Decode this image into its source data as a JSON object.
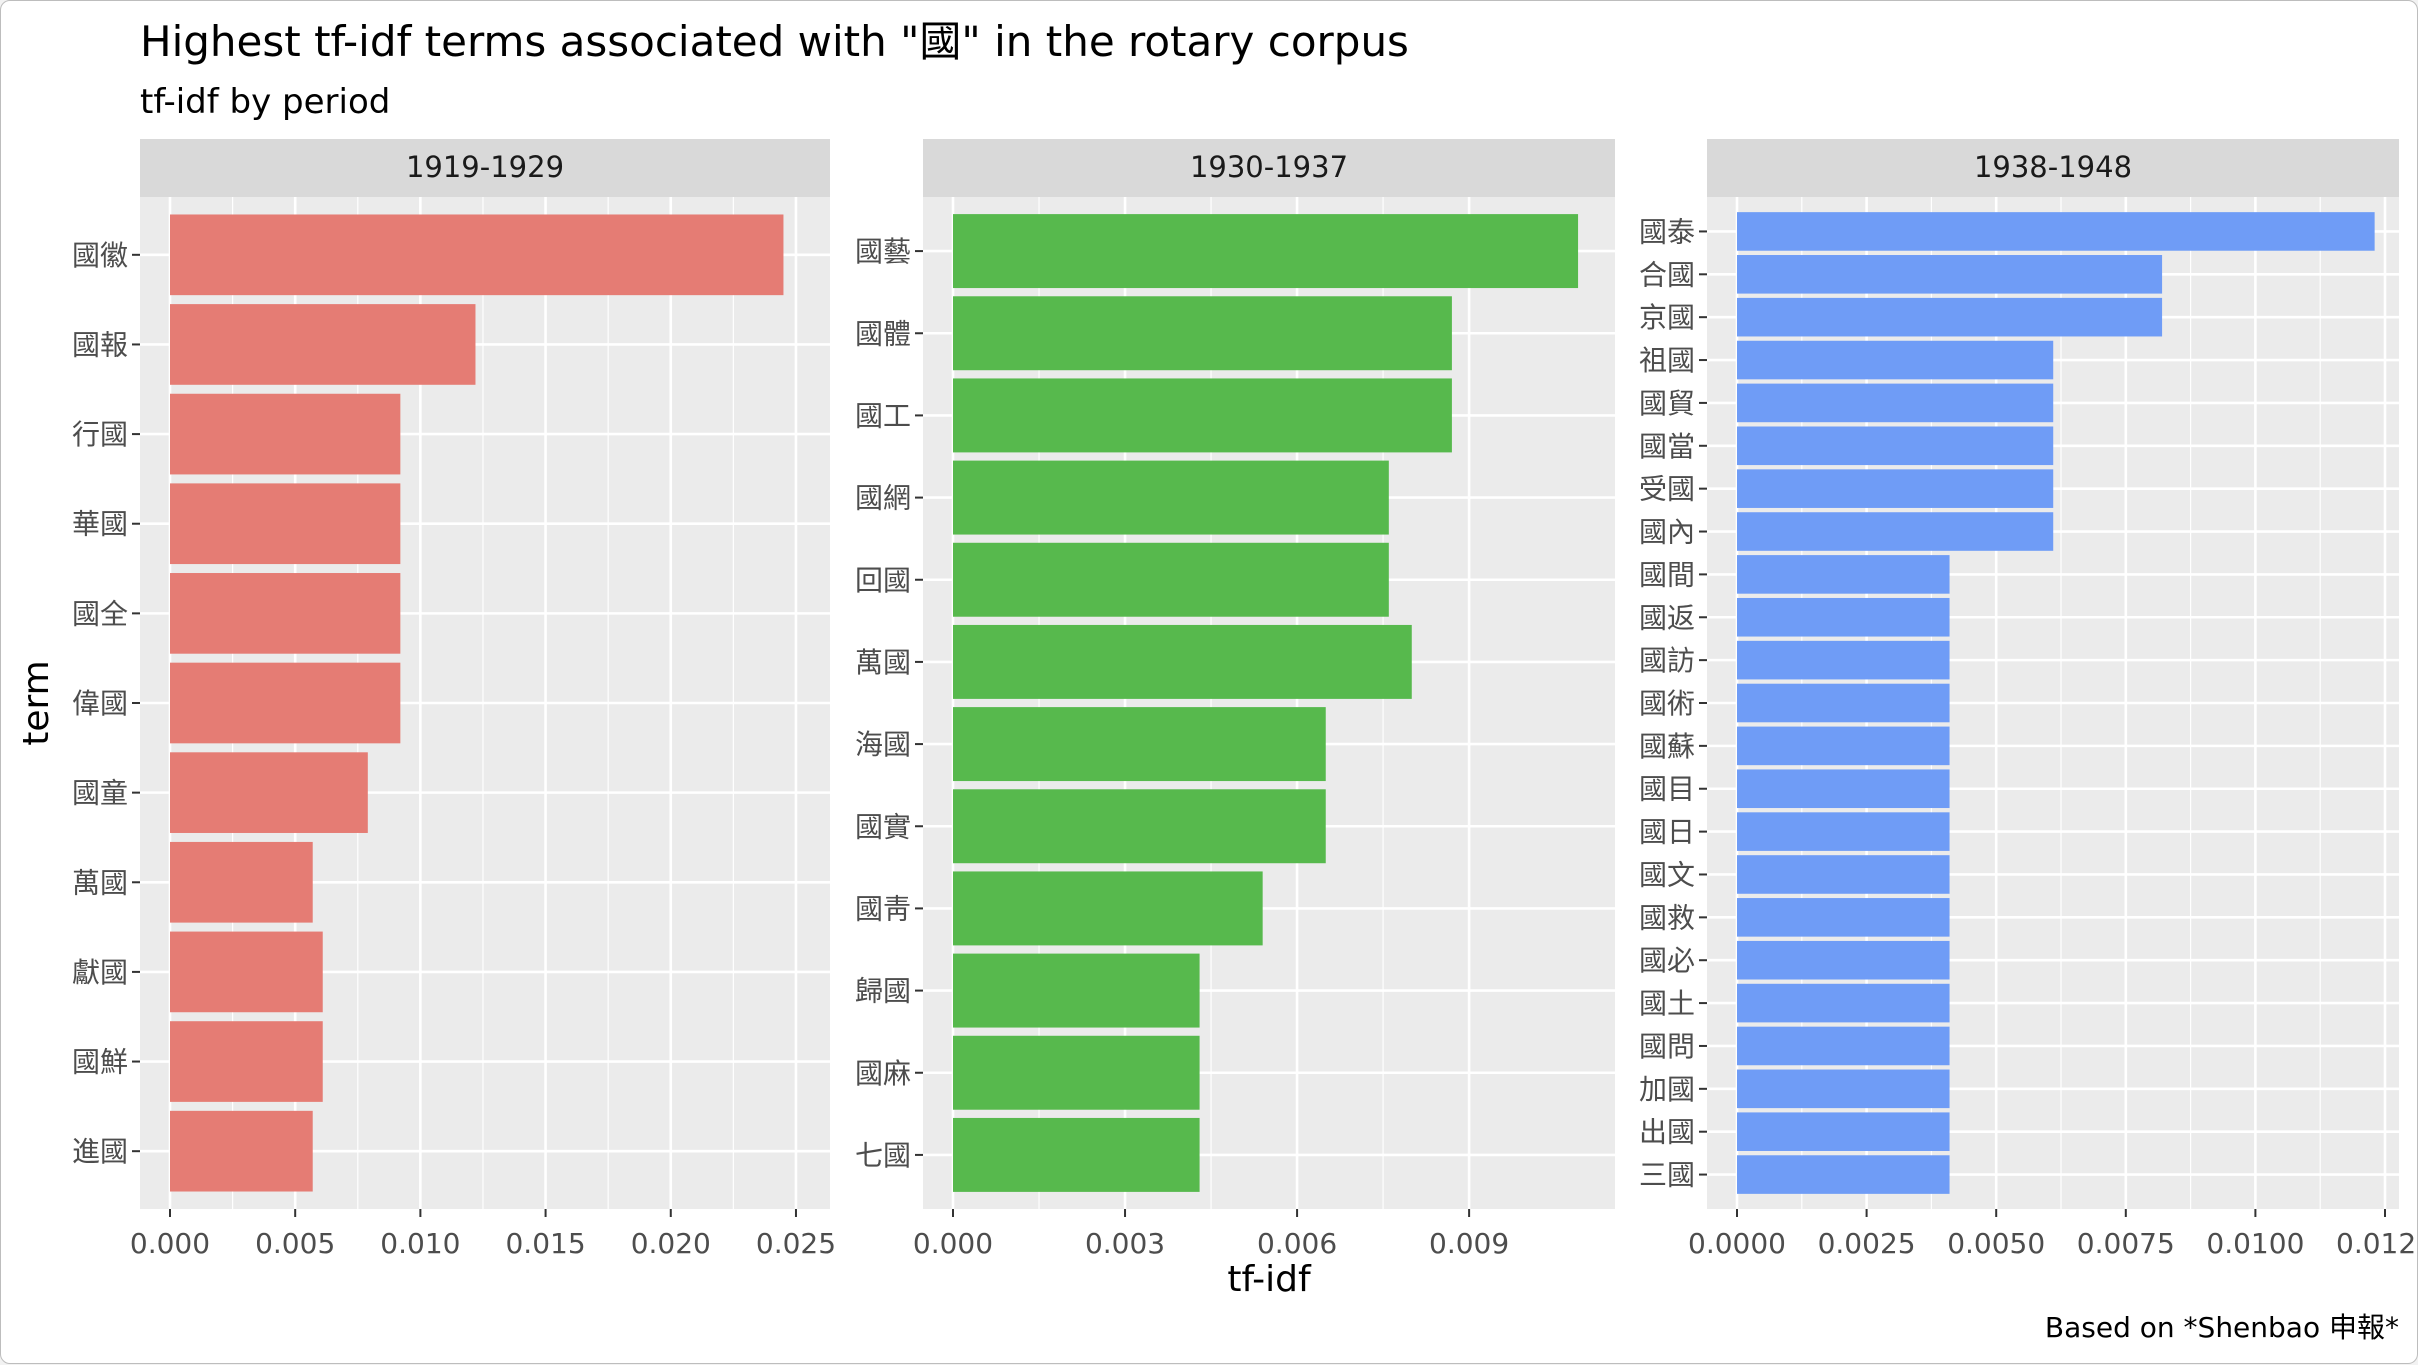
{
  "title": "Highest tf-idf terms associated with \"國\" in the rotary corpus",
  "subtitle": "tf-idf by period",
  "caption": "Based on *Shenbao 申報*",
  "chart_data": {
    "type": "bar",
    "orientation": "horizontal",
    "xlabel": "tf-idf",
    "ylabel": "term",
    "grid": true,
    "panels": [
      {
        "facet": "1919-1929",
        "color": "#E57C74",
        "xlim": [
          0,
          0.0258
        ],
        "ticks": [
          "0.000",
          "0.005",
          "0.010",
          "0.015",
          "0.020",
          "0.025"
        ],
        "tick_values": [
          0,
          0.005,
          0.01,
          0.015,
          0.02,
          0.025
        ],
        "bars": [
          {
            "term": "國徽",
            "value": 0.0245
          },
          {
            "term": "國報",
            "value": 0.0122
          },
          {
            "term": "行國",
            "value": 0.0092
          },
          {
            "term": "華國",
            "value": 0.0092
          },
          {
            "term": "國全",
            "value": 0.0092
          },
          {
            "term": "偉國",
            "value": 0.0092
          },
          {
            "term": "國童",
            "value": 0.0079
          },
          {
            "term": "萬國",
            "value": 0.0057
          },
          {
            "term": "獻國",
            "value": 0.0061
          },
          {
            "term": "國鮮",
            "value": 0.0061
          },
          {
            "term": "進國",
            "value": 0.0057
          }
        ]
      },
      {
        "facet": "1930-1937",
        "color": "#57B94D",
        "xlim": [
          0,
          0.0113
        ],
        "ticks": [
          "0.000",
          "0.003",
          "0.006",
          "0.009"
        ],
        "tick_values": [
          0,
          0.003,
          0.006,
          0.009
        ],
        "bars": [
          {
            "term": "國藝",
            "value": 0.0109
          },
          {
            "term": "國體",
            "value": 0.0087
          },
          {
            "term": "國工",
            "value": 0.0087
          },
          {
            "term": "國網",
            "value": 0.0076
          },
          {
            "term": "回國",
            "value": 0.0076
          },
          {
            "term": "萬國",
            "value": 0.008
          },
          {
            "term": "海國",
            "value": 0.0065
          },
          {
            "term": "國實",
            "value": 0.0065
          },
          {
            "term": "國靑",
            "value": 0.0054
          },
          {
            "term": "歸國",
            "value": 0.0043
          },
          {
            "term": "國麻",
            "value": 0.0043
          },
          {
            "term": "七國",
            "value": 0.0043
          }
        ]
      },
      {
        "facet": "1938-1948",
        "color": "#6F9CF6",
        "xlim": [
          0,
          0.0125
        ],
        "ticks": [
          "0.0000",
          "0.0025",
          "0.0050",
          "0.0075",
          "0.0100",
          "0.0125"
        ],
        "tick_values": [
          0,
          0.0025,
          0.005,
          0.0075,
          0.01,
          0.0125
        ],
        "bars": [
          {
            "term": "國泰",
            "value": 0.0123
          },
          {
            "term": "合國",
            "value": 0.0082
          },
          {
            "term": "京國",
            "value": 0.0082
          },
          {
            "term": "祖國",
            "value": 0.0061
          },
          {
            "term": "國貿",
            "value": 0.0061
          },
          {
            "term": "國當",
            "value": 0.0061
          },
          {
            "term": "受國",
            "value": 0.0061
          },
          {
            "term": "國內",
            "value": 0.0061
          },
          {
            "term": "國間",
            "value": 0.0041
          },
          {
            "term": "國返",
            "value": 0.0041
          },
          {
            "term": "國訪",
            "value": 0.0041
          },
          {
            "term": "國術",
            "value": 0.0041
          },
          {
            "term": "國蘇",
            "value": 0.0041
          },
          {
            "term": "國目",
            "value": 0.0041
          },
          {
            "term": "國日",
            "value": 0.0041
          },
          {
            "term": "國文",
            "value": 0.0041
          },
          {
            "term": "國救",
            "value": 0.0041
          },
          {
            "term": "國必",
            "value": 0.0041
          },
          {
            "term": "國土",
            "value": 0.0041
          },
          {
            "term": "國問",
            "value": 0.0041
          },
          {
            "term": "加國",
            "value": 0.0041
          },
          {
            "term": "出國",
            "value": 0.0041
          },
          {
            "term": "三國",
            "value": 0.0041
          }
        ]
      }
    ]
  }
}
